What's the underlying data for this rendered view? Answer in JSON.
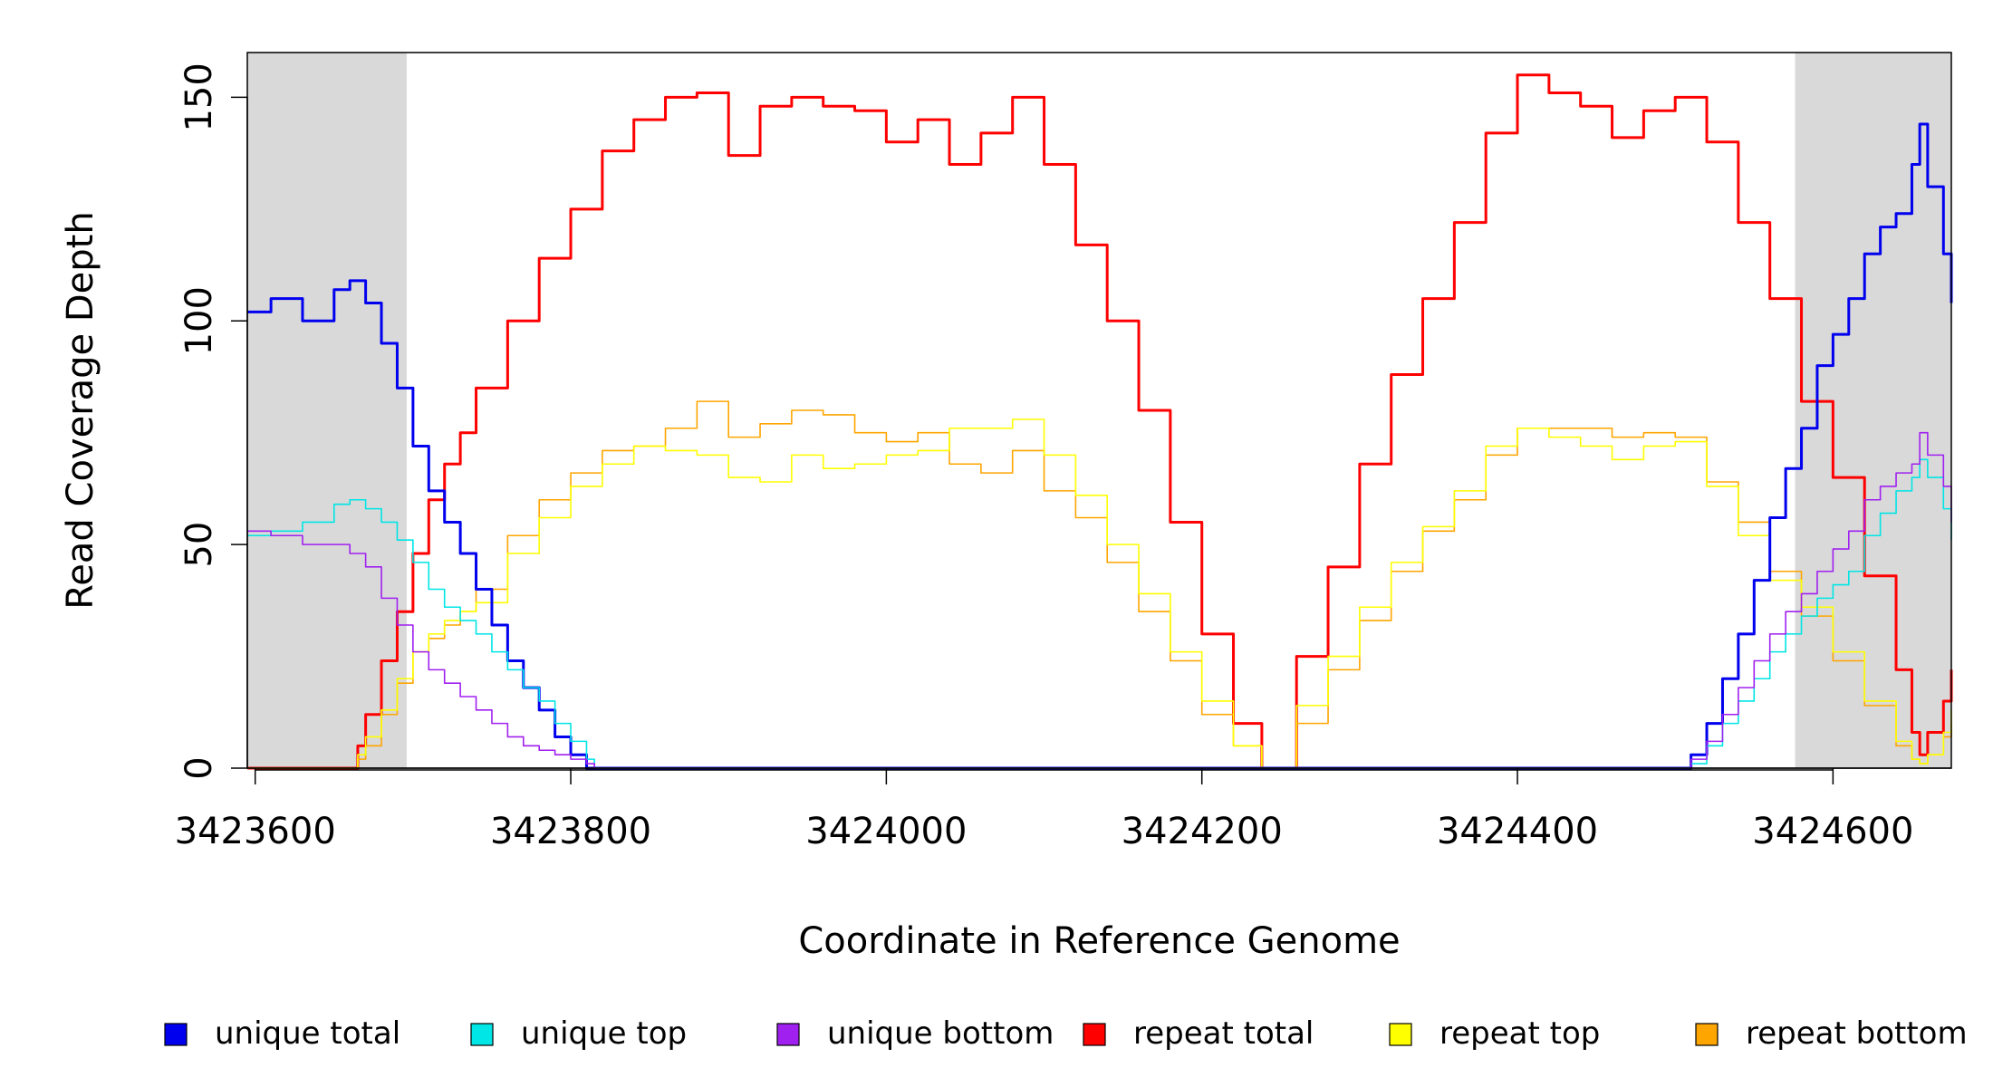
{
  "chart_data": {
    "type": "line",
    "xlabel": "Coordinate in Reference Genome",
    "ylabel": "Read Coverage Depth",
    "xlim": [
      3423595,
      3424675
    ],
    "ylim": [
      0,
      160
    ],
    "x_ticks": [
      3423600,
      3423800,
      3424000,
      3424200,
      3424400,
      3424600
    ],
    "y_ticks": [
      0,
      50,
      100,
      150
    ],
    "shaded_regions": [
      [
        3423595,
        3423696
      ],
      [
        3424576,
        3424675
      ]
    ],
    "legend_position": "bottom",
    "series": [
      {
        "name": "unique total",
        "color": "#0000ee",
        "x": [
          3423595,
          3423610,
          3423630,
          3423650,
          3423660,
          3423670,
          3423680,
          3423690,
          3423700,
          3423710,
          3423720,
          3423730,
          3423740,
          3423750,
          3423760,
          3423770,
          3423780,
          3423790,
          3423800,
          3423810,
          3423815,
          3424000,
          3424200,
          3424400,
          3424505,
          3424510,
          3424520,
          3424530,
          3424540,
          3424550,
          3424560,
          3424570,
          3424580,
          3424590,
          3424600,
          3424610,
          3424620,
          3424630,
          3424640,
          3424650,
          3424655,
          3424660,
          3424670,
          3424675
        ],
        "values": [
          102,
          105,
          100,
          107,
          109,
          104,
          95,
          85,
          72,
          62,
          55,
          48,
          40,
          32,
          24,
          18,
          13,
          7,
          3,
          0,
          0,
          0,
          0,
          0,
          0,
          3,
          10,
          20,
          30,
          42,
          56,
          67,
          76,
          90,
          97,
          105,
          115,
          121,
          124,
          135,
          144,
          130,
          115,
          104
        ]
      },
      {
        "name": "unique top",
        "color": "#00e5e5",
        "x": [
          3423595,
          3423610,
          3423630,
          3423650,
          3423660,
          3423670,
          3423680,
          3423690,
          3423700,
          3423710,
          3423720,
          3423730,
          3423740,
          3423750,
          3423760,
          3423770,
          3423780,
          3423790,
          3423800,
          3423810,
          3423815,
          3424000,
          3424200,
          3424400,
          3424505,
          3424510,
          3424520,
          3424530,
          3424540,
          3424550,
          3424560,
          3424570,
          3424580,
          3424590,
          3424600,
          3424610,
          3424620,
          3424630,
          3424640,
          3424650,
          3424655,
          3424660,
          3424670,
          3424675
        ],
        "values": [
          52,
          53,
          55,
          59,
          60,
          58,
          55,
          51,
          46,
          40,
          36,
          33,
          30,
          26,
          22,
          18,
          15,
          10,
          6,
          2,
          0,
          0,
          0,
          0,
          0,
          1,
          5,
          10,
          15,
          20,
          26,
          30,
          34,
          38,
          41,
          44,
          52,
          57,
          62,
          65,
          69,
          65,
          58,
          51
        ]
      },
      {
        "name": "unique bottom",
        "color": "#a020f0",
        "x": [
          3423595,
          3423610,
          3423630,
          3423650,
          3423660,
          3423670,
          3423680,
          3423690,
          3423700,
          3423710,
          3423720,
          3423730,
          3423740,
          3423750,
          3423760,
          3423770,
          3423780,
          3423790,
          3423800,
          3423810,
          3423815,
          3424000,
          3424200,
          3424400,
          3424505,
          3424510,
          3424520,
          3424530,
          3424540,
          3424550,
          3424560,
          3424570,
          3424580,
          3424590,
          3424600,
          3424610,
          3424620,
          3424630,
          3424640,
          3424650,
          3424655,
          3424660,
          3424670,
          3424675
        ],
        "values": [
          53,
          52,
          50,
          50,
          48,
          45,
          38,
          32,
          26,
          22,
          19,
          16,
          13,
          10,
          7,
          5,
          4,
          3,
          2,
          1,
          0,
          0,
          0,
          0,
          0,
          2,
          6,
          12,
          18,
          24,
          30,
          35,
          39,
          44,
          49,
          53,
          60,
          63,
          66,
          68,
          75,
          70,
          63,
          55
        ]
      },
      {
        "name": "repeat total",
        "color": "#ff0000",
        "x": [
          3423595,
          3423660,
          3423665,
          3423670,
          3423680,
          3423690,
          3423700,
          3423710,
          3423720,
          3423730,
          3423740,
          3423760,
          3423780,
          3423800,
          3423820,
          3423840,
          3423860,
          3423880,
          3423900,
          3423920,
          3423940,
          3423960,
          3423980,
          3424000,
          3424020,
          3424040,
          3424060,
          3424080,
          3424100,
          3424120,
          3424140,
          3424160,
          3424180,
          3424200,
          3424220,
          3424238,
          3424260,
          3424280,
          3424300,
          3424320,
          3424340,
          3424360,
          3424380,
          3424400,
          3424420,
          3424440,
          3424460,
          3424480,
          3424500,
          3424520,
          3424540,
          3424560,
          3424580,
          3424600,
          3424620,
          3424640,
          3424650,
          3424655,
          3424660,
          3424670,
          3424675
        ],
        "values": [
          0,
          0,
          5,
          12,
          24,
          35,
          48,
          60,
          68,
          75,
          85,
          100,
          114,
          125,
          138,
          145,
          150,
          151,
          137,
          148,
          150,
          148,
          147,
          140,
          145,
          135,
          142,
          150,
          135,
          117,
          100,
          80,
          55,
          30,
          10,
          0,
          25,
          45,
          68,
          88,
          105,
          122,
          142,
          155,
          151,
          148,
          141,
          147,
          150,
          140,
          122,
          105,
          82,
          65,
          43,
          22,
          8,
          3,
          8,
          15,
          22
        ]
      },
      {
        "name": "repeat top",
        "color": "#ffff00",
        "x": [
          3423595,
          3423660,
          3423665,
          3423670,
          3423680,
          3423690,
          3423700,
          3423710,
          3423720,
          3423730,
          3423740,
          3423760,
          3423780,
          3423800,
          3423820,
          3423840,
          3423860,
          3423880,
          3423900,
          3423920,
          3423940,
          3423960,
          3423980,
          3424000,
          3424020,
          3424040,
          3424060,
          3424080,
          3424100,
          3424120,
          3424140,
          3424160,
          3424180,
          3424200,
          3424220,
          3424238,
          3424260,
          3424280,
          3424300,
          3424320,
          3424340,
          3424360,
          3424380,
          3424400,
          3424420,
          3424440,
          3424460,
          3424480,
          3424500,
          3424520,
          3424540,
          3424560,
          3424580,
          3424600,
          3424620,
          3424640,
          3424650,
          3424655,
          3424660,
          3424670,
          3424675
        ],
        "values": [
          0,
          0,
          3,
          7,
          13,
          20,
          26,
          30,
          33,
          35,
          37,
          48,
          56,
          63,
          68,
          72,
          71,
          70,
          65,
          64,
          70,
          67,
          68,
          70,
          71,
          76,
          76,
          78,
          70,
          61,
          50,
          39,
          26,
          15,
          5,
          0,
          14,
          25,
          36,
          46,
          54,
          62,
          72,
          76,
          74,
          72,
          69,
          72,
          73,
          63,
          52,
          42,
          36,
          26,
          15,
          6,
          2,
          1,
          3,
          8,
          13
        ]
      },
      {
        "name": "repeat bottom",
        "color": "#ffa500",
        "x": [
          3423595,
          3423660,
          3423665,
          3423670,
          3423680,
          3423690,
          3423700,
          3423710,
          3423720,
          3423730,
          3423740,
          3423760,
          3423780,
          3423800,
          3423820,
          3423840,
          3423860,
          3423880,
          3423900,
          3423920,
          3423940,
          3423960,
          3423980,
          3424000,
          3424020,
          3424040,
          3424060,
          3424080,
          3424100,
          3424120,
          3424140,
          3424160,
          3424180,
          3424200,
          3424220,
          3424238,
          3424260,
          3424280,
          3424300,
          3424320,
          3424340,
          3424360,
          3424380,
          3424400,
          3424420,
          3424440,
          3424460,
          3424480,
          3424500,
          3424520,
          3424540,
          3424560,
          3424580,
          3424600,
          3424620,
          3424640,
          3424650,
          3424655,
          3424660,
          3424670,
          3424675
        ],
        "values": [
          0,
          0,
          2,
          5,
          12,
          19,
          26,
          29,
          32,
          35,
          40,
          52,
          60,
          66,
          71,
          72,
          76,
          82,
          74,
          77,
          80,
          79,
          75,
          73,
          75,
          68,
          66,
          71,
          62,
          56,
          46,
          35,
          24,
          12,
          5,
          0,
          10,
          22,
          33,
          44,
          53,
          60,
          70,
          76,
          76,
          76,
          74,
          75,
          74,
          64,
          55,
          44,
          34,
          24,
          14,
          5,
          2,
          1,
          3,
          7,
          10
        ]
      }
    ]
  }
}
